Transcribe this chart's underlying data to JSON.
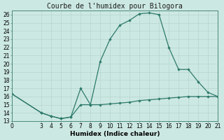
{
  "x_upper": [
    0,
    3,
    4,
    5,
    6,
    7,
    8,
    9,
    10,
    11,
    12,
    13,
    14,
    15,
    16,
    17,
    18,
    19,
    20,
    21
  ],
  "y_upper": [
    16.3,
    14.0,
    13.6,
    13.3,
    13.5,
    17.0,
    15.0,
    20.3,
    23.0,
    24.7,
    25.3,
    26.1,
    26.2,
    26.0,
    22.0,
    19.3,
    19.3,
    17.8,
    16.5,
    16.0
  ],
  "x_lower": [
    0,
    3,
    4,
    5,
    6,
    7,
    8,
    9,
    10,
    11,
    12,
    13,
    14,
    15,
    16,
    17,
    18,
    19,
    20,
    21
  ],
  "y_lower": [
    16.3,
    14.0,
    13.6,
    13.3,
    13.5,
    15.0,
    15.0,
    15.0,
    15.1,
    15.2,
    15.3,
    15.5,
    15.6,
    15.7,
    15.8,
    15.9,
    16.0,
    16.0,
    16.0,
    16.0
  ],
  "line_color": "#2d7a6b",
  "bg_color": "#cce8e2",
  "grid_color_major": "#b8d4ce",
  "grid_color_minor": "#d4e8e4",
  "title": "Courbe de l'humidex pour Bilogora",
  "xlabel": "Humidex (Indice chaleur)",
  "xlim": [
    0,
    21
  ],
  "ylim": [
    13,
    26.5
  ],
  "xticks": [
    0,
    3,
    4,
    5,
    6,
    7,
    8,
    9,
    10,
    11,
    12,
    13,
    14,
    15,
    16,
    17,
    18,
    19,
    20,
    21
  ],
  "yticks": [
    13,
    14,
    15,
    16,
    17,
    18,
    19,
    20,
    21,
    22,
    23,
    24,
    25,
    26
  ],
  "title_fontsize": 7,
  "axis_fontsize": 6.5,
  "tick_fontsize": 5.5
}
